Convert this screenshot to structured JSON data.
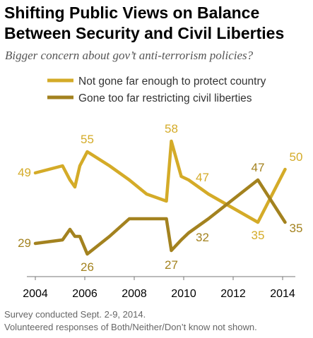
{
  "title_line1": "Shifting Public Views on Balance",
  "title_line2": "Between Security and Civil Liberties",
  "subtitle": "Bigger concern about gov’t anti-terrorism policies?",
  "footer_note1": "Survey conducted Sept. 2-9, 2014.",
  "footer_note2": "Volunteered responses of Both/Neither/Don’t know not shown.",
  "colors": {
    "series_not_far_enough": "#d4ab28",
    "series_too_far": "#a3821f",
    "axis": "#777777"
  },
  "chart_data": {
    "type": "line",
    "xlim": [
      2004,
      2014
    ],
    "ylim": [
      20,
      65
    ],
    "x_ticks": [
      "2004",
      "2006",
      "2008",
      "2010",
      "2012",
      "2014"
    ],
    "grid": false,
    "legend_position": "top-left",
    "series": [
      {
        "name": "Not gone far enough to protect country",
        "color": "#d4ab28",
        "x": [
          2004.0,
          2005.1,
          2005.4,
          2005.6,
          2005.8,
          2006.1,
          2007.0,
          2007.8,
          2008.5,
          2009.3,
          2009.5,
          2009.9,
          2010.2,
          2011.0,
          2013.0,
          2014.1
        ],
        "y": [
          49,
          51,
          47,
          45,
          51,
          55,
          51,
          47,
          43,
          41,
          58,
          48,
          47,
          43,
          35,
          50
        ]
      },
      {
        "name": "Gone too far restricting civil liberties",
        "color": "#a3821f",
        "x": [
          2004.0,
          2005.1,
          2005.4,
          2005.6,
          2005.8,
          2006.1,
          2007.0,
          2007.8,
          2008.5,
          2009.3,
          2009.5,
          2009.9,
          2010.2,
          2011.0,
          2013.0,
          2014.1
        ],
        "y": [
          29,
          30,
          33,
          31,
          31,
          26,
          31,
          36,
          36,
          36,
          27,
          30,
          32,
          36,
          47,
          35
        ]
      }
    ],
    "data_labels": [
      {
        "series": 0,
        "text": "49",
        "x": 2004.0,
        "y": 49,
        "anchor": "end",
        "dx": -6,
        "dy": 5
      },
      {
        "series": 0,
        "text": "55",
        "x": 2006.1,
        "y": 55,
        "anchor": "middle",
        "dx": 0,
        "dy": -12
      },
      {
        "series": 0,
        "text": "58",
        "x": 2009.5,
        "y": 58,
        "anchor": "middle",
        "dx": 0,
        "dy": -12
      },
      {
        "series": 0,
        "text": "47",
        "x": 2010.2,
        "y": 47,
        "anchor": "start",
        "dx": 10,
        "dy": 2
      },
      {
        "series": 0,
        "text": "35",
        "x": 2013.0,
        "y": 35,
        "anchor": "middle",
        "dx": 0,
        "dy": 24
      },
      {
        "series": 0,
        "text": "50",
        "x": 2014.1,
        "y": 50,
        "anchor": "start",
        "dx": 6,
        "dy": -12
      },
      {
        "series": 1,
        "text": "29",
        "x": 2004.0,
        "y": 29,
        "anchor": "end",
        "dx": -6,
        "dy": 5
      },
      {
        "series": 1,
        "text": "26",
        "x": 2006.1,
        "y": 26,
        "anchor": "middle",
        "dx": 0,
        "dy": 24
      },
      {
        "series": 1,
        "text": "27",
        "x": 2009.5,
        "y": 27,
        "anchor": "middle",
        "dx": 0,
        "dy": 26
      },
      {
        "series": 1,
        "text": "32",
        "x": 2010.2,
        "y": 32,
        "anchor": "start",
        "dx": 10,
        "dy": 12
      },
      {
        "series": 1,
        "text": "47",
        "x": 2013.0,
        "y": 47,
        "anchor": "middle",
        "dx": 0,
        "dy": -12
      },
      {
        "series": 1,
        "text": "35",
        "x": 2014.1,
        "y": 35,
        "anchor": "start",
        "dx": 6,
        "dy": 14
      }
    ]
  }
}
